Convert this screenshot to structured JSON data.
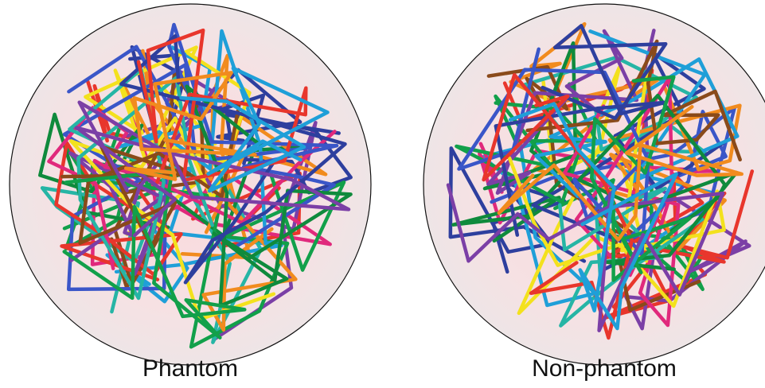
{
  "panels": [
    {
      "label": "Phantom"
    },
    {
      "label": "Non-phantom"
    }
  ]
}
